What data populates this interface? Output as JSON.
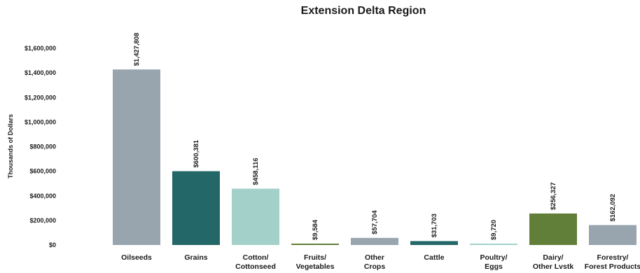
{
  "chart_data": {
    "type": "bar",
    "title": "Extension Delta Region",
    "ylabel": "Thousands of Dollars",
    "xlabel": "",
    "ylim": [
      0,
      1600000
    ],
    "yticks": [
      0,
      200000,
      400000,
      600000,
      800000,
      1000000,
      1200000,
      1400000,
      1600000
    ],
    "ytick_labels": [
      "$0",
      "$200,000",
      "$400,000",
      "$600,000",
      "$800,000",
      "$1,000,000",
      "$1,200,000",
      "$1,400,000",
      "$1,600,000"
    ],
    "grid": false,
    "legend": "none",
    "categories": [
      [
        "Oilseeds"
      ],
      [
        "Grains"
      ],
      [
        "Cotton/",
        "Cottonseed"
      ],
      [
        "Fruits/",
        "Vegetables"
      ],
      [
        "Other",
        "Crops"
      ],
      [
        "Cattle"
      ],
      [
        "Poultry/",
        "Eggs"
      ],
      [
        "Dairy/",
        "Other Lvstk"
      ],
      [
        "Forestry/",
        "Forest Products"
      ]
    ],
    "values": [
      1427808,
      600381,
      458116,
      9584,
      57704,
      31703,
      9720,
      256327,
      162092
    ],
    "data_labels": [
      "$1,427,808",
      "$600,381",
      "$458,116",
      "$9,584",
      "$57,704",
      "$31,703",
      "$9,720",
      "$256,327",
      "$162,092"
    ],
    "colors": [
      "#98a4ae",
      "#246769",
      "#a3d1ca",
      "#627f3a",
      "#98a4ae",
      "#246769",
      "#a3d1ca",
      "#627f3a",
      "#98a4ae"
    ]
  }
}
